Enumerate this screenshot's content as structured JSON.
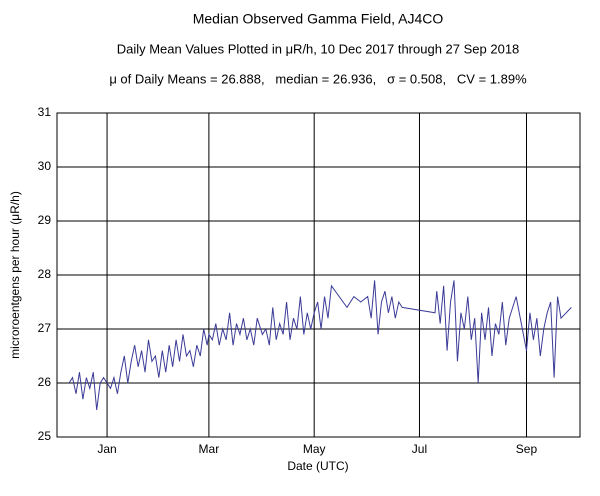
{
  "chart_data": {
    "type": "line",
    "title": "Median Observed Gamma Field, AJ4CO",
    "subtitle": "Daily Mean Values Plotted in μR/h, 10 Dec 2017 through 27 Sep 2018",
    "annotation": "μ of Daily Means = 26.888,   median = 26.936,   σ = 0.508,   CV = 1.89%",
    "xlabel": "Date (UTC)",
    "ylabel": "microroentgens per hour (μR/h)",
    "x": [
      "2017-12-10",
      "2017-12-12",
      "2017-12-14",
      "2017-12-16",
      "2017-12-18",
      "2017-12-20",
      "2017-12-22",
      "2017-12-24",
      "2017-12-26",
      "2017-12-28",
      "2017-12-30",
      "2018-01-01",
      "2018-01-03",
      "2018-01-05",
      "2018-01-07",
      "2018-01-09",
      "2018-01-11",
      "2018-01-13",
      "2018-01-15",
      "2018-01-17",
      "2018-01-19",
      "2018-01-21",
      "2018-01-23",
      "2018-01-25",
      "2018-01-27",
      "2018-01-29",
      "2018-01-31",
      "2018-02-02",
      "2018-02-04",
      "2018-02-06",
      "2018-02-08",
      "2018-02-10",
      "2018-02-12",
      "2018-02-14",
      "2018-02-16",
      "2018-02-18",
      "2018-02-20",
      "2018-02-22",
      "2018-02-24",
      "2018-02-26",
      "2018-02-28",
      "2018-03-01",
      "2018-03-03",
      "2018-03-05",
      "2018-03-07",
      "2018-03-09",
      "2018-03-11",
      "2018-03-13",
      "2018-03-15",
      "2018-03-17",
      "2018-03-19",
      "2018-03-21",
      "2018-03-23",
      "2018-03-25",
      "2018-03-27",
      "2018-03-29",
      "2018-04-01",
      "2018-04-03",
      "2018-04-05",
      "2018-04-07",
      "2018-04-09",
      "2018-04-11",
      "2018-04-13",
      "2018-04-15",
      "2018-04-17",
      "2018-04-19",
      "2018-04-21",
      "2018-04-23",
      "2018-04-25",
      "2018-04-27",
      "2018-04-29",
      "2018-05-01",
      "2018-05-03",
      "2018-05-05",
      "2018-05-07",
      "2018-05-09",
      "2018-05-11",
      "2018-05-20",
      "2018-05-24",
      "2018-05-28",
      "2018-06-01",
      "2018-06-03",
      "2018-06-05",
      "2018-06-07",
      "2018-06-09",
      "2018-06-11",
      "2018-06-13",
      "2018-06-15",
      "2018-06-17",
      "2018-06-19",
      "2018-06-21",
      "2018-07-10",
      "2018-07-11",
      "2018-07-13",
      "2018-07-15",
      "2018-07-17",
      "2018-07-19",
      "2018-07-21",
      "2018-07-23",
      "2018-07-25",
      "2018-07-27",
      "2018-07-29",
      "2018-07-31",
      "2018-08-02",
      "2018-08-04",
      "2018-08-06",
      "2018-08-08",
      "2018-08-10",
      "2018-08-12",
      "2018-08-14",
      "2018-08-16",
      "2018-08-18",
      "2018-08-20",
      "2018-08-22",
      "2018-08-24",
      "2018-08-26",
      "2018-09-01",
      "2018-09-03",
      "2018-09-05",
      "2018-09-07",
      "2018-09-09",
      "2018-09-11",
      "2018-09-13",
      "2018-09-15",
      "2018-09-17",
      "2018-09-19",
      "2018-09-21",
      "2018-09-27"
    ],
    "series": [
      {
        "name": "Daily mean",
        "color": "#3b3b98",
        "values": [
          26.0,
          26.1,
          25.8,
          26.2,
          25.7,
          26.1,
          25.9,
          26.2,
          25.5,
          26.0,
          26.1,
          26.0,
          25.9,
          26.1,
          25.8,
          26.2,
          26.5,
          26.0,
          26.4,
          26.7,
          26.3,
          26.6,
          26.2,
          26.8,
          26.4,
          26.5,
          26.1,
          26.6,
          26.2,
          26.7,
          26.3,
          26.8,
          26.4,
          26.9,
          26.5,
          26.6,
          26.3,
          26.7,
          26.5,
          27.0,
          26.7,
          26.9,
          26.8,
          27.1,
          26.7,
          27.0,
          26.8,
          27.3,
          26.7,
          27.1,
          26.9,
          27.2,
          26.8,
          27.0,
          26.7,
          27.2,
          26.9,
          27.0,
          26.7,
          27.4,
          26.8,
          27.1,
          26.9,
          27.5,
          26.8,
          27.2,
          27.0,
          27.6,
          26.9,
          27.3,
          27.0,
          27.3,
          27.5,
          27.0,
          27.6,
          27.2,
          27.8,
          27.4,
          27.6,
          27.5,
          27.6,
          27.2,
          27.9,
          26.9,
          27.5,
          27.7,
          27.3,
          27.6,
          27.2,
          27.5,
          27.4,
          27.3,
          27.7,
          27.1,
          27.8,
          26.6,
          27.5,
          27.9,
          26.4,
          27.3,
          27.0,
          27.6,
          26.8,
          27.2,
          26.0,
          27.3,
          26.8,
          27.4,
          26.5,
          27.1,
          26.9,
          27.5,
          26.7,
          27.2,
          27.4,
          27.6,
          26.6,
          27.3,
          26.8,
          27.2,
          26.5,
          27.0,
          27.3,
          27.5,
          26.1,
          27.6,
          27.2,
          27.4
        ]
      }
    ],
    "xlim": [
      "2017-12-03",
      "2018-10-02"
    ],
    "xticks": [
      {
        "value": "2018-01-01",
        "label": "Jan"
      },
      {
        "value": "2018-03-01",
        "label": "Mar"
      },
      {
        "value": "2018-05-01",
        "label": "May"
      },
      {
        "value": "2018-07-01",
        "label": "Jul"
      },
      {
        "value": "2018-09-01",
        "label": "Sep"
      }
    ],
    "ylim": [
      25,
      31
    ],
    "yticks": [
      25,
      26,
      27,
      28,
      29,
      30,
      31
    ],
    "grid": true
  }
}
